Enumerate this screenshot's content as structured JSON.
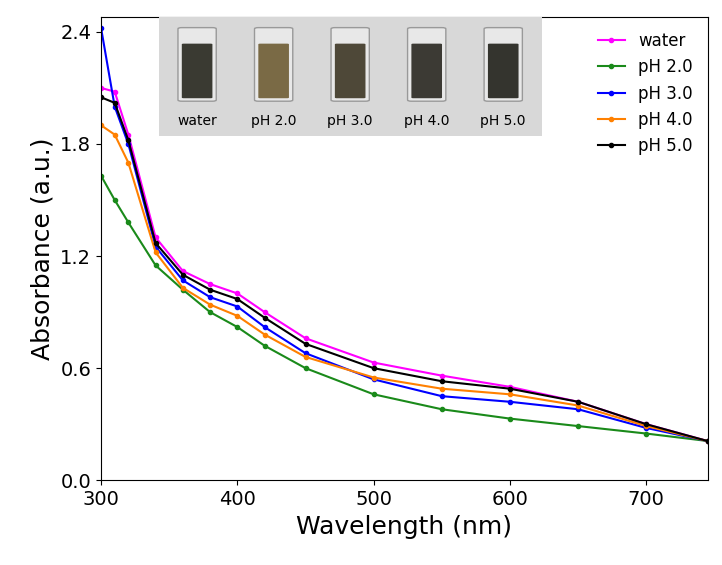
{
  "chart_data": {
    "type": "line",
    "x_label": "Wavelength (nm)",
    "y_label": "Absorbance (a.u.)",
    "x": [
      300,
      310,
      320,
      340,
      360,
      380,
      400,
      420,
      450,
      500,
      550,
      600,
      650,
      700,
      745
    ],
    "series": [
      {
        "name": "water",
        "color": "#ff00ff",
        "values": [
          2.1,
          2.08,
          1.85,
          1.3,
          1.12,
          1.05,
          1.0,
          0.9,
          0.76,
          0.63,
          0.56,
          0.5,
          0.42,
          0.3,
          0.21
        ]
      },
      {
        "name": "pH 2.0",
        "color": "#1a8a1a",
        "values": [
          1.63,
          1.5,
          1.38,
          1.15,
          1.02,
          0.9,
          0.82,
          0.72,
          0.6,
          0.46,
          0.38,
          0.33,
          0.29,
          0.25,
          0.21
        ]
      },
      {
        "name": "pH 3.0",
        "color": "#0000ff",
        "values": [
          2.42,
          2.0,
          1.8,
          1.25,
          1.07,
          0.98,
          0.93,
          0.82,
          0.68,
          0.54,
          0.45,
          0.42,
          0.38,
          0.28,
          0.21
        ]
      },
      {
        "name": "pH 4.0",
        "color": "#ff8000",
        "values": [
          1.9,
          1.85,
          1.7,
          1.22,
          1.03,
          0.94,
          0.88,
          0.78,
          0.66,
          0.55,
          0.49,
          0.46,
          0.4,
          0.29,
          0.21
        ]
      },
      {
        "name": "pH 5.0",
        "color": "#000000",
        "values": [
          2.05,
          2.02,
          1.82,
          1.27,
          1.1,
          1.02,
          0.97,
          0.87,
          0.73,
          0.6,
          0.53,
          0.49,
          0.42,
          0.3,
          0.21
        ]
      }
    ],
    "xlim": [
      300,
      745
    ],
    "xticks": [
      300,
      400,
      500,
      600,
      700
    ],
    "ylim": [
      0,
      2.48
    ],
    "yticks": [
      {
        "value": 0,
        "label": "0.0"
      },
      0.6,
      1.2,
      1.8,
      2.4
    ],
    "legend": "upper right",
    "marker": "o",
    "line_style": "solid",
    "annotations": [
      "water",
      "pH 2.0",
      "pH 3.0",
      "pH 4.0",
      "pH 5.0"
    ]
  }
}
